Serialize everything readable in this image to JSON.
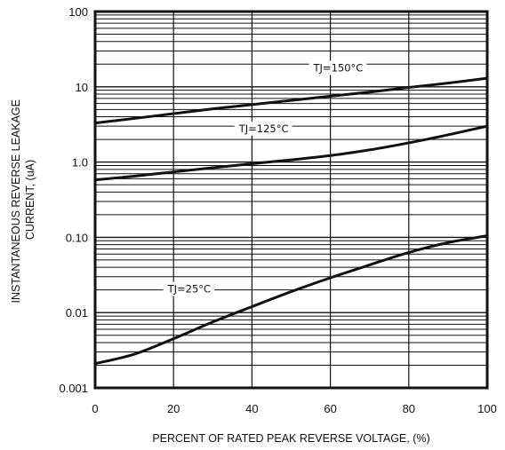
{
  "chart_data": {
    "type": "line",
    "title": "",
    "xlabel": "PERCENT OF RATED PEAK REVERSE VOLTAGE, (%)",
    "ylabel_lines": [
      "INSTANTANEOUS REVERSE LEAKAGE",
      "CURRENT, (uA)"
    ],
    "xlim": [
      0,
      100
    ],
    "ylim": [
      0.001,
      100
    ],
    "yscale": "log",
    "grid": true,
    "x_ticks": [
      {
        "value": 0,
        "label": "0"
      },
      {
        "value": 20,
        "label": "20"
      },
      {
        "value": 40,
        "label": "40"
      },
      {
        "value": 60,
        "label": "60"
      },
      {
        "value": 80,
        "label": "80"
      },
      {
        "value": 100,
        "label": "100"
      }
    ],
    "y_ticks": [
      {
        "value": 0.001,
        "label": "0.001"
      },
      {
        "value": 0.01,
        "label": "0.01"
      },
      {
        "value": 0.1,
        "label": "0.10"
      },
      {
        "value": 1,
        "label": "1.0"
      },
      {
        "value": 10,
        "label": "10"
      },
      {
        "value": 100,
        "label": "100"
      }
    ],
    "series": [
      {
        "name": "TJ=150°C",
        "x": [
          0,
          10,
          20,
          30,
          40,
          50,
          60,
          70,
          80,
          90,
          100
        ],
        "values": [
          3.3,
          3.8,
          4.4,
          5.1,
          5.8,
          6.6,
          7.5,
          8.5,
          9.8,
          11.2,
          13.0
        ],
        "label_at": {
          "x": 62,
          "y": 16
        }
      },
      {
        "name": "TJ=125°C",
        "x": [
          0,
          10,
          20,
          30,
          40,
          50,
          60,
          70,
          80,
          90,
          100
        ],
        "values": [
          0.58,
          0.65,
          0.74,
          0.84,
          0.95,
          1.07,
          1.22,
          1.45,
          1.8,
          2.3,
          3.0
        ],
        "label_at": {
          "x": 43,
          "y": 2.5
        }
      },
      {
        "name": "TJ=25°C",
        "x": [
          0,
          10,
          20,
          30,
          40,
          50,
          60,
          70,
          80,
          90,
          100
        ],
        "values": [
          0.0021,
          0.0028,
          0.0045,
          0.0075,
          0.012,
          0.019,
          0.029,
          0.043,
          0.063,
          0.085,
          0.105
        ],
        "label_at": {
          "x": 24,
          "y": 0.0185
        }
      }
    ]
  }
}
